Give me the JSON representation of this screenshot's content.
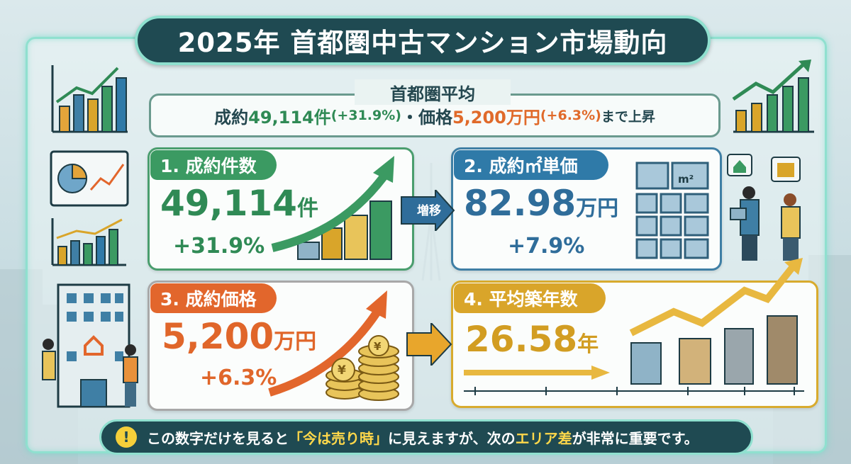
{
  "title": "2025年 首都圏中古マンション市場動向",
  "summary": {
    "label": "首都圏平均",
    "prefix": "成約",
    "count": "49,114件",
    "count_change": "(+31.9%)",
    "sep": "・価格",
    "price": "5,200万円",
    "price_change": "(+6.3%)",
    "suffix": "まで上昇"
  },
  "cards": [
    {
      "tag": "1. 成約件数",
      "value": "49,114",
      "unit": "件",
      "change": "+31.9%",
      "color": "#3b9a62"
    },
    {
      "tag": "2. 成約㎡単価",
      "value": "82.98",
      "unit": "万円",
      "change": "+7.9%",
      "color": "#2f7aa8"
    },
    {
      "tag": "3. 成約価格",
      "value": "5,200",
      "unit": "万円",
      "change": "+6.3%",
      "color": "#e2662c"
    },
    {
      "tag": "4. 平均築年数",
      "value": "26.58",
      "unit": "年",
      "color": "#d9a52a"
    }
  ],
  "arrow_label": "増移",
  "unit_badge": "m²",
  "coin_symbol": "¥",
  "footer": {
    "a": "この数字だけを見ると",
    "b": "「今は売り時」",
    "c": "に見えますが、次の",
    "d": "エリア差",
    "e": "が非常に重要です。"
  }
}
